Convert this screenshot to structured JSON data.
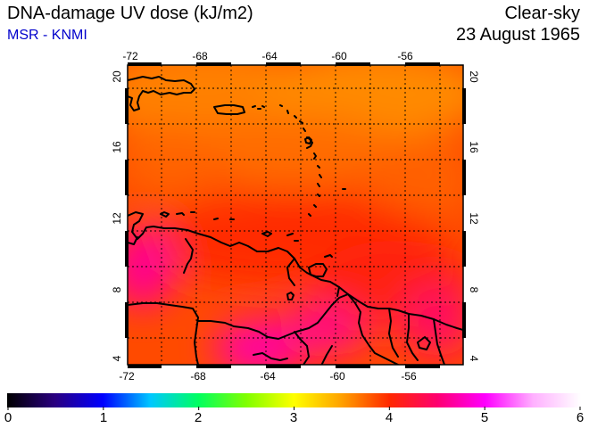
{
  "header": {
    "title": "DNA-damage UV dose (kJ/m2)",
    "subtitle": "MSR - KNMI",
    "scenario": "Clear-sky",
    "date": "23 August 1965"
  },
  "map": {
    "lon_ticks": [
      "-72",
      "-68",
      "-64",
      "-60",
      "-56"
    ],
    "lat_ticks": [
      "20",
      "16",
      "12",
      "8",
      "4"
    ],
    "lon_range": [
      -72,
      -52.5
    ],
    "lat_range": [
      3.5,
      20.5
    ],
    "field_range_kJ_m2": [
      3.6,
      5.4
    ],
    "colors": {
      "dominant_orange": "#ff7a00",
      "dominant_red": "#ff3200",
      "high_magenta": "#ff10c8"
    }
  },
  "colorbar": {
    "min": 0,
    "max": 6,
    "labels": [
      "0",
      "1",
      "2",
      "3",
      "4",
      "5",
      "6"
    ],
    "stops": [
      "#000000",
      "#2a0080",
      "#0000ff",
      "#00c8ff",
      "#00ff60",
      "#80ff00",
      "#ffff00",
      "#ffa000",
      "#ff2800",
      "#ff0070",
      "#ff00ff",
      "#ffb0ff",
      "#ffffff"
    ]
  }
}
